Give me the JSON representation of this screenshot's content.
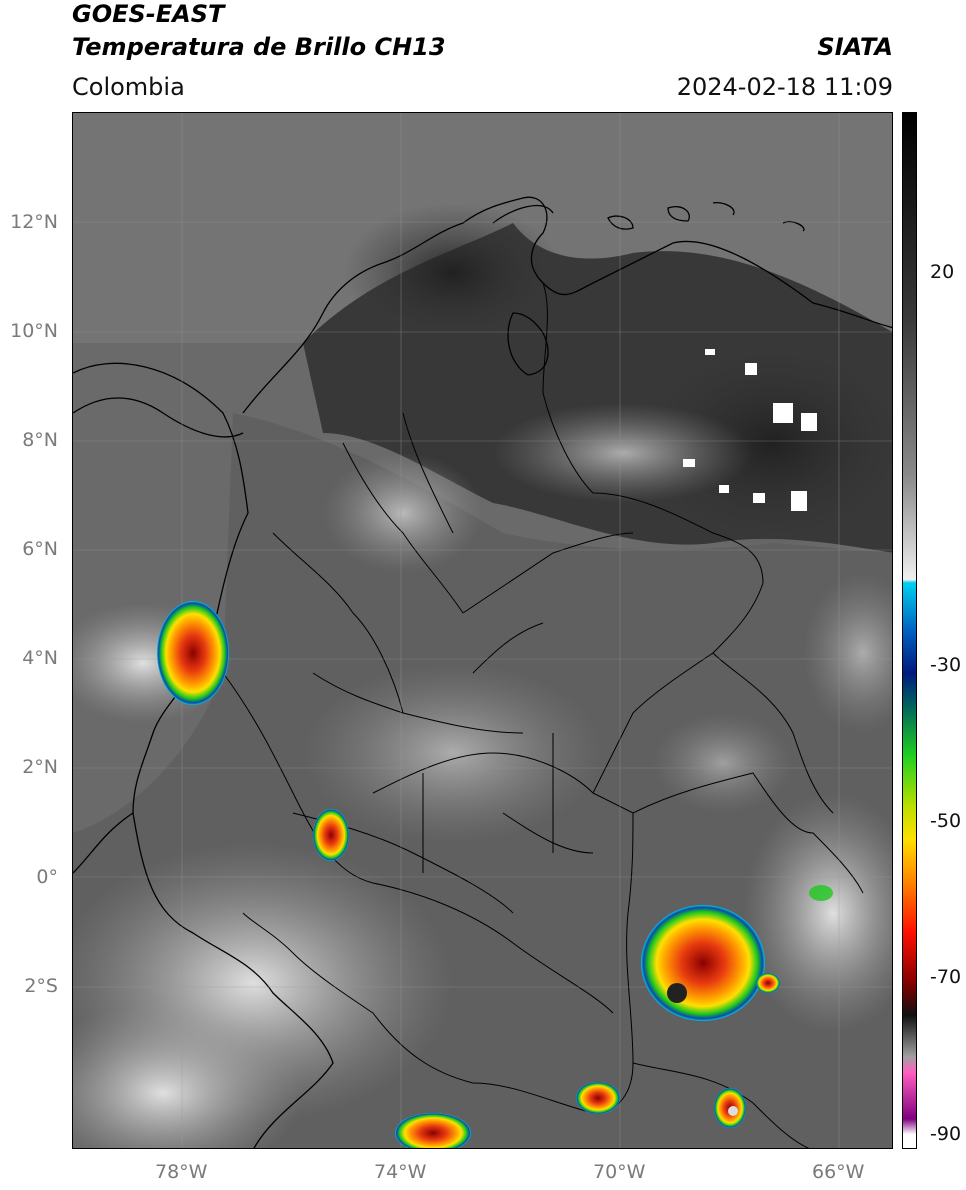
{
  "header": {
    "satellite": "GOES-EAST",
    "product": "Temperatura de Brillo CH13",
    "agency": "SIATA",
    "region": "Colombia",
    "datetime": "2024-02-18 11:09"
  },
  "map": {
    "lat_labels": [
      "12°N",
      "10°N",
      "8°N",
      "6°N",
      "4°N",
      "2°N",
      "0°",
      "2°S"
    ],
    "lon_labels": [
      "78°W",
      "74°W",
      "70°W",
      "66°W"
    ],
    "extent": {
      "lon_min": -80.0,
      "lon_max": -65.0,
      "lat_min": -5.0,
      "lat_max": 14.0
    },
    "colors": {
      "background_cloud_free": "#5a5a5a",
      "coast": "#000000",
      "grid": "#9a9a9a"
    },
    "storm_cells": [
      {
        "name": "pacific-cell",
        "lon": -78.0,
        "lat": 4.2
      },
      {
        "name": "putumayo-cell",
        "lon": -75.1,
        "lat": 0.7
      },
      {
        "name": "amazon-cell-large",
        "lon": -68.2,
        "lat": -1.7
      },
      {
        "name": "amazon-cell-south",
        "lon": -68.0,
        "lat": -4.1
      },
      {
        "name": "border-cell",
        "lon": -70.3,
        "lat": -4.0
      },
      {
        "name": "peru-cell",
        "lon": -73.5,
        "lat": -4.7
      }
    ]
  },
  "colorbar": {
    "tick_labels": [
      "20",
      "-30",
      "-50",
      "-70",
      "-90"
    ],
    "tick_values": [
      20,
      -30,
      -50,
      -70,
      -90
    ],
    "range": [
      -92,
      38
    ]
  }
}
